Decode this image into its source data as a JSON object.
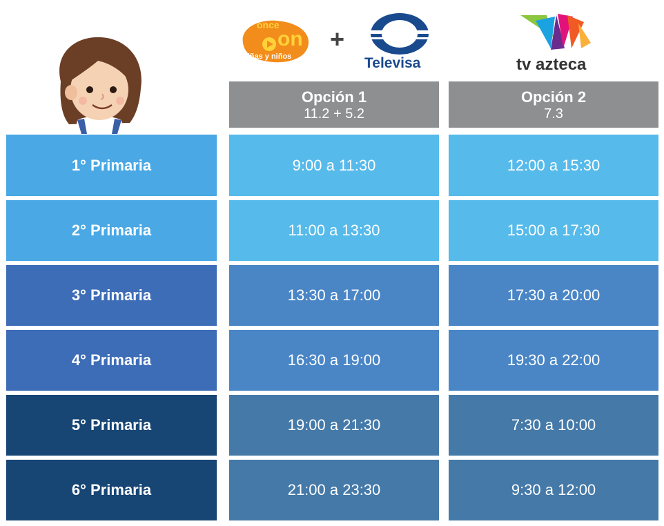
{
  "logos": {
    "once_top": "once",
    "once_mid": "on",
    "once_bottom": "niñas y niños",
    "plus": "+",
    "televisa": "Televisa",
    "tvazteca": "tv azteca"
  },
  "headers": [
    {
      "title": "Opción 1",
      "subtitle": "11.2  +  5.2"
    },
    {
      "title": "Opción 2",
      "subtitle": "7.3"
    }
  ],
  "rows": [
    {
      "grade": "1° Primaria",
      "opt1": "9:00 a 11:30",
      "opt2": "12:00 a 15:30"
    },
    {
      "grade": "2° Primaria",
      "opt1": "11:00 a 13:30",
      "opt2": "15:00 a 17:30"
    },
    {
      "grade": "3° Primaria",
      "opt1": "13:30 a 17:00",
      "opt2": "17:30 a 20:00"
    },
    {
      "grade": "4° Primaria",
      "opt1": "16:30 a 19:00",
      "opt2": "19:30 a 22:00"
    },
    {
      "grade": "5° Primaria",
      "opt1": "19:00 a 21:30",
      "opt2": "7:30 a 10:00"
    },
    {
      "grade": "6° Primaria",
      "opt1": "21:00 a 23:30",
      "opt2": "9:30 a 12:00"
    }
  ],
  "colors": {
    "header_gray": "#8e8f91",
    "grade_light": "#4aa8e4",
    "cell_light": "#56baea",
    "grade_mid": "#3e6db7",
    "cell_mid": "#4a86c6",
    "grade_dark": "#174574",
    "cell_dark": "#4479a8"
  }
}
